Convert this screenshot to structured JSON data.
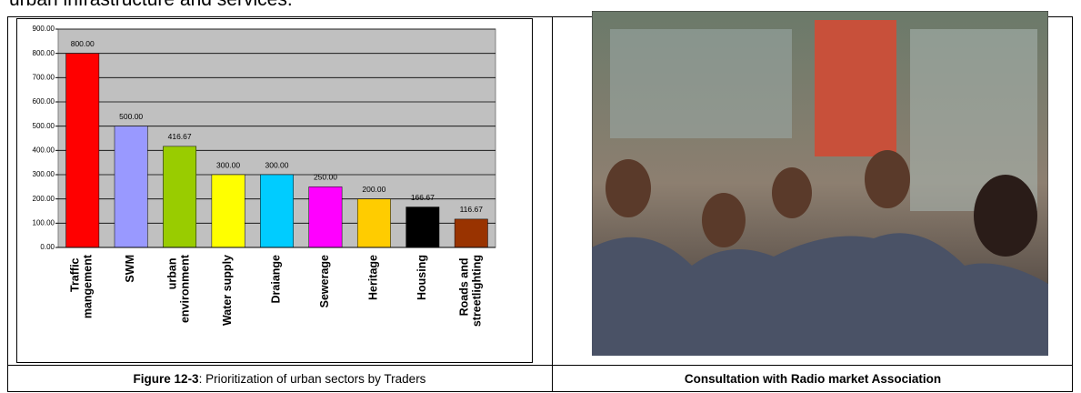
{
  "heading": "urban infrastructure and services.",
  "chart_data": {
    "type": "bar",
    "categories": [
      "Traffic mangement",
      "SWM",
      "urban environment",
      "Water supply",
      "Draiange",
      "Sewerage",
      "Heritage",
      "Housing",
      "Roads and streetlighting"
    ],
    "values": [
      800,
      500,
      416.67,
      300,
      300,
      250,
      200,
      166.67,
      116.67
    ],
    "value_labels": [
      "800.00",
      "500.00",
      "416.67",
      "300.00",
      "300.00",
      "250.00",
      "200.00",
      "166.67",
      "116.67"
    ],
    "colors": [
      "#ff0000",
      "#9999ff",
      "#99cc00",
      "#ffff00",
      "#00ccff",
      "#ff00ff",
      "#ffcc00",
      "#000000",
      "#993300"
    ],
    "ylim": [
      0,
      900
    ],
    "yticks": [
      {
        "value": 0,
        "label": "0.00"
      },
      {
        "value": 100,
        "label": "100.00"
      },
      {
        "value": 200,
        "label": "200.00"
      },
      {
        "value": 300,
        "label": "300.00"
      },
      {
        "value": 400,
        "label": "400.00"
      },
      {
        "value": 500,
        "label": "500.00"
      },
      {
        "value": 600,
        "label": "600.00"
      },
      {
        "value": 700,
        "label": "700.00"
      },
      {
        "value": 800,
        "label": "800.00"
      },
      {
        "value": 900,
        "label": "900.00"
      }
    ],
    "grid": true
  },
  "captions": {
    "left": {
      "label": "Figure 12-3",
      "text": ": Prioritization of urban sectors by Traders"
    },
    "right": "Consultation with Radio market Association"
  }
}
